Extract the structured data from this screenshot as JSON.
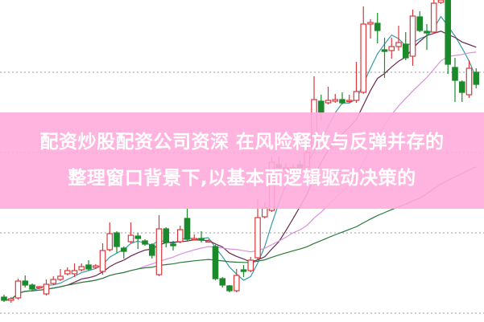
{
  "banner": {
    "line1": "配资炒股配资公司资深 在风险释放与反弹并存的",
    "line2": "整理窗口背景下,以基本面逻辑驱动决策的",
    "color": "#ffacdc"
  },
  "chart_data": {
    "type": "candlestick",
    "title": "",
    "xlabel": "",
    "ylabel": "",
    "ylim": [
      3.8,
      11.8
    ],
    "grid": {
      "horizontal": true,
      "style": "dotted",
      "levels": [
        4,
        6,
        8,
        10
      ]
    },
    "colors": {
      "up": "#d8383c",
      "down": "#1a8a2a",
      "ma_lines": [
        "#3a9aa8",
        "#6a2850",
        "#d890e0",
        "#2a7a3a"
      ]
    },
    "candles_ohlc": [
      [
        4.4,
        4.46,
        4.28,
        4.32
      ],
      [
        4.32,
        4.4,
        4.26,
        4.36
      ],
      [
        4.38,
        4.86,
        4.34,
        4.8
      ],
      [
        4.8,
        4.94,
        4.64,
        4.7
      ],
      [
        4.7,
        4.74,
        4.56,
        4.6
      ],
      [
        4.64,
        4.68,
        4.6,
        4.66
      ],
      [
        4.48,
        4.84,
        4.44,
        4.72
      ],
      [
        4.74,
        4.92,
        4.7,
        4.84
      ],
      [
        4.84,
        5.1,
        4.8,
        4.92
      ],
      [
        4.98,
        5.14,
        4.94,
        5.06
      ],
      [
        4.98,
        5.24,
        4.9,
        5.06
      ],
      [
        5.08,
        5.24,
        5.04,
        5.16
      ],
      [
        5.2,
        5.32,
        5.06,
        5.1
      ],
      [
        5.14,
        5.22,
        5.1,
        5.18
      ],
      [
        5.04,
        5.74,
        4.96,
        5.56
      ],
      [
        5.58,
        6.26,
        5.54,
        5.98
      ],
      [
        6.0,
        6.04,
        5.5,
        5.66
      ],
      [
        5.62,
        5.66,
        5.36,
        5.54
      ],
      [
        5.78,
        6.26,
        5.74,
        5.94
      ],
      [
        5.92,
        6.0,
        5.6,
        5.86
      ],
      [
        5.8,
        5.84,
        5.68,
        5.72
      ],
      [
        5.7,
        5.74,
        5.36,
        5.44
      ],
      [
        4.96,
        6.44,
        4.92,
        6.1
      ],
      [
        6.1,
        6.14,
        5.64,
        5.76
      ],
      [
        5.72,
        5.8,
        5.56,
        5.68
      ],
      [
        5.78,
        6.18,
        5.74,
        6.08
      ],
      [
        6.36,
        6.62,
        5.8,
        5.84
      ],
      [
        5.84,
        5.96,
        5.82,
        5.86
      ],
      [
        5.86,
        6.04,
        5.76,
        5.82
      ],
      [
        5.8,
        5.84,
        5.76,
        5.8
      ],
      [
        5.66,
        5.7,
        4.82,
        4.86
      ],
      [
        4.86,
        4.9,
        4.64,
        4.7
      ],
      [
        4.68,
        4.7,
        4.52,
        4.56
      ],
      [
        4.56,
        5.1,
        4.52,
        4.94
      ],
      [
        5.08,
        5.2,
        4.9,
        5.04
      ],
      [
        5.06,
        5.4,
        5.02,
        5.32
      ],
      [
        5.38,
        6.84,
        5.34,
        6.38
      ],
      [
        6.4,
        6.76,
        6.36,
        6.62
      ],
      [
        6.56,
        7.9,
        6.52,
        7.76
      ],
      [
        7.7,
        7.9,
        7.5,
        7.62
      ],
      [
        7.6,
        7.74,
        7.52,
        7.62
      ],
      [
        7.6,
        7.72,
        7.52,
        7.62
      ],
      [
        7.7,
        7.8,
        7.56,
        7.62
      ],
      [
        7.64,
        8.2,
        7.6,
        8.0
      ],
      [
        8.1,
        9.9,
        8.06,
        9.32
      ],
      [
        9.28,
        9.44,
        8.8,
        9.0
      ],
      [
        9.24,
        9.64,
        9.2,
        9.3
      ],
      [
        9.28,
        9.46,
        9.24,
        9.32
      ],
      [
        9.32,
        9.5,
        9.2,
        9.24
      ],
      [
        9.28,
        9.44,
        9.24,
        9.3
      ],
      [
        9.3,
        10.26,
        9.24,
        9.52
      ],
      [
        9.5,
        11.64,
        9.46,
        11.2
      ],
      [
        11.2,
        11.32,
        10.84,
        11.24
      ],
      [
        11.22,
        11.48,
        10.72,
        11.04
      ],
      [
        10.56,
        10.86,
        9.86,
        10.52
      ],
      [
        10.54,
        10.86,
        10.34,
        10.64
      ],
      [
        10.64,
        11.16,
        10.54,
        10.74
      ],
      [
        10.7,
        11.0,
        10.3,
        10.36
      ],
      [
        10.4,
        11.56,
        10.16,
        11.4
      ],
      [
        11.38,
        11.52,
        11.0,
        11.04
      ],
      [
        11.02,
        11.2,
        10.56,
        10.98
      ],
      [
        11.0,
        11.8,
        10.96,
        11.72
      ],
      [
        11.74,
        11.8,
        11.7,
        11.8
      ],
      [
        11.8,
        11.8,
        9.96,
        10.2
      ],
      [
        10.12,
        10.36,
        9.26,
        9.8
      ],
      [
        9.76,
        9.8,
        9.26,
        9.5
      ],
      [
        9.44,
        10.3,
        9.36,
        10.1
      ],
      [
        10.0,
        10.1,
        9.6,
        9.7
      ]
    ]
  }
}
